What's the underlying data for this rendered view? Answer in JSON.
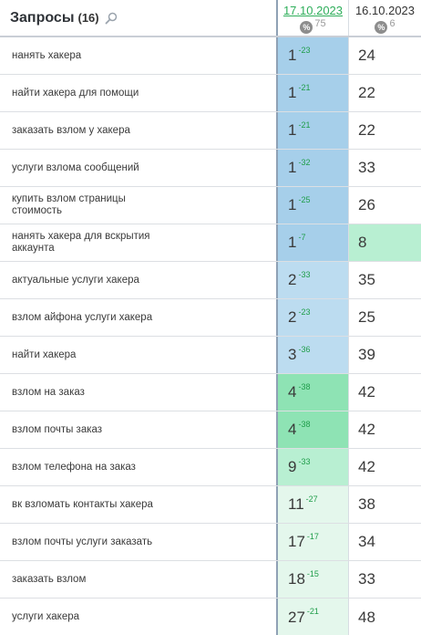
{
  "header": {
    "title": "Запросы",
    "count": "(16)",
    "date1": "17.10.2023",
    "date1_sub": "75",
    "date2": "16.10.2023",
    "date2_sub": "6",
    "pct_symbol": "%"
  },
  "rows": [
    {
      "query": "нанять хакера",
      "pos1": "1",
      "delta": "-23",
      "pos2": "24"
    },
    {
      "query": "найти хакера для помощи",
      "pos1": "1",
      "delta": "-21",
      "pos2": "22"
    },
    {
      "query": "заказать взлом у хакера",
      "pos1": "1",
      "delta": "-21",
      "pos2": "22"
    },
    {
      "query": "услуги взлома сообщений",
      "pos1": "1",
      "delta": "-32",
      "pos2": "33"
    },
    {
      "query": "купить взлом страницы стоимость",
      "pos1": "1",
      "delta": "-25",
      "pos2": "26"
    },
    {
      "query": "нанять хакера для вскрытия аккаунта",
      "pos1": "1",
      "delta": "-7",
      "pos2": "8"
    },
    {
      "query": "актуальные услуги хакера",
      "pos1": "2",
      "delta": "-33",
      "pos2": "35"
    },
    {
      "query": "взлом айфона услуги хакера",
      "pos1": "2",
      "delta": "-23",
      "pos2": "25"
    },
    {
      "query": "найти хакера",
      "pos1": "3",
      "delta": "-36",
      "pos2": "39"
    },
    {
      "query": "взлом на заказ",
      "pos1": "4",
      "delta": "-38",
      "pos2": "42"
    },
    {
      "query": "взлом почты заказ",
      "pos1": "4",
      "delta": "-38",
      "pos2": "42"
    },
    {
      "query": "взлом телефона на заказ",
      "pos1": "9",
      "delta": "-33",
      "pos2": "42"
    },
    {
      "query": "вк взломать контакты хакера",
      "pos1": "11",
      "delta": "-27",
      "pos2": "38"
    },
    {
      "query": "взлом почты услуги заказать",
      "pos1": "17",
      "delta": "-17",
      "pos2": "34"
    },
    {
      "query": "заказать взлом",
      "pos1": "18",
      "delta": "-15",
      "pos2": "33"
    },
    {
      "query": "услуги хакера",
      "pos1": "27",
      "delta": "-21",
      "pos2": "48"
    }
  ]
}
